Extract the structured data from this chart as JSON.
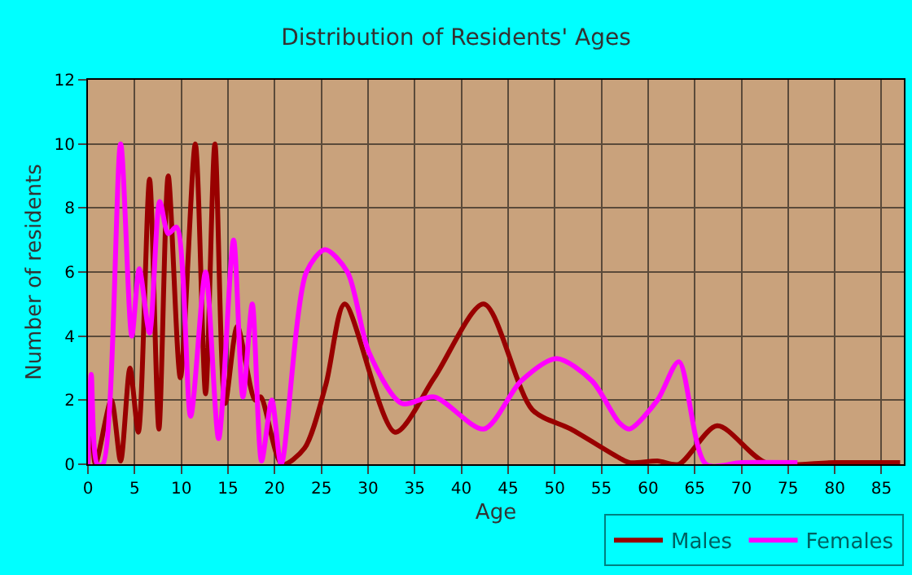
{
  "chart_data": {
    "type": "line",
    "title": "Distribution of Residents' Ages",
    "xlabel": "Age",
    "ylabel": "Number of residents",
    "xlim": [
      0,
      87.4
    ],
    "xticks": [
      0,
      5,
      10,
      15,
      20,
      25,
      30,
      35,
      40,
      45,
      50,
      55,
      60,
      65,
      70,
      75,
      80,
      85
    ],
    "ylim": [
      0,
      12
    ],
    "yticks": [
      0,
      2,
      4,
      6,
      8,
      10,
      12
    ],
    "grid": true,
    "legend": "bottom right",
    "marker": "none",
    "line_style": "solid",
    "series": [
      {
        "name": "Males",
        "color": "#990000",
        "x": [
          0,
          0.35,
          0.8,
          2.5,
          3.5,
          4.5,
          5.4,
          6.6,
          7.6,
          8.6,
          9.9,
          11.5,
          12.6,
          13.6,
          14.7,
          16,
          17.9,
          18.5,
          20.8,
          23.2,
          25.5,
          27.5,
          32.9,
          37.1,
          42.4,
          47.6,
          51.7,
          56.9,
          58,
          61,
          63.3,
          67.4,
          72.6,
          80,
          87
        ],
        "values": [
          0,
          2,
          0,
          2,
          0.1,
          3,
          1,
          8.9,
          1.1,
          9,
          2.7,
          10,
          2.2,
          10,
          1.9,
          4.3,
          2,
          2.1,
          0,
          0.5,
          2.5,
          5,
          1,
          2.7,
          5,
          1.7,
          1.1,
          0.2,
          0.05,
          0.1,
          0,
          1.2,
          0.05,
          0.05,
          0.05
        ]
      },
      {
        "name": "Females",
        "color": "#ff00ff",
        "x": [
          0,
          0.35,
          1.0,
          1.6,
          3.5,
          4.7,
          5.5,
          6.6,
          7.7,
          8.6,
          9.5,
          11,
          12.6,
          14,
          15.6,
          16.6,
          17.6,
          18.6,
          19.7,
          20.7,
          23.4,
          25.4,
          27.8,
          30.1,
          33.6,
          37.1,
          42.4,
          46.4,
          50.2,
          54,
          56.9,
          58,
          61,
          63.3,
          66.2,
          70,
          76
        ],
        "values": [
          0,
          2.8,
          0,
          0,
          10,
          4,
          6.1,
          4.1,
          8.2,
          7.2,
          7.4,
          1.5,
          6,
          0.8,
          7,
          2.1,
          5,
          0.1,
          2,
          0,
          6,
          6.7,
          6,
          3.5,
          1.9,
          2.1,
          1.1,
          2.6,
          3.3,
          2.6,
          1.3,
          1.1,
          2,
          3.2,
          0,
          0.05,
          0.05
        ]
      }
    ]
  }
}
